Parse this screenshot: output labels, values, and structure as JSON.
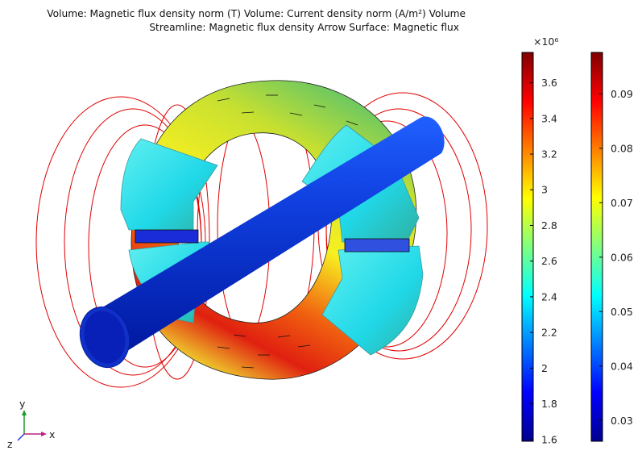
{
  "title": {
    "line1": "Volume: Magnetic flux density norm (T)  Volume: Current density norm (A/m²)  Volume",
    "line2": "Streamline: Magnetic flux density  Arrow Surface: Magnetic flux"
  },
  "axes_triad": {
    "x": "x",
    "y": "y",
    "z": "z"
  },
  "chart_data": [
    {
      "type": "heatmap",
      "title": "",
      "colormap": "jet",
      "multiplier": "×10⁶",
      "range": [
        1.59,
        3.77
      ],
      "ticks": [
        "1.6",
        "1.8",
        "2",
        "2.2",
        "2.4",
        "2.6",
        "2.8",
        "3",
        "3.2",
        "3.4",
        "3.6"
      ],
      "tick_values": [
        1.6,
        1.8,
        2.0,
        2.2,
        2.4,
        2.6,
        2.8,
        3.0,
        3.2,
        3.4,
        3.6
      ]
    },
    {
      "type": "heatmap",
      "title": "",
      "colormap": "jet",
      "range": [
        0.0262,
        0.0976
      ],
      "ticks": [
        "0.03",
        "0.04",
        "0.05",
        "0.06",
        "0.07",
        "0.08",
        "0.09"
      ],
      "tick_values": [
        0.03,
        0.04,
        0.05,
        0.06,
        0.07,
        0.08,
        0.09
      ]
    }
  ],
  "colors": {
    "streamline": "#e00000",
    "jet_low": "#00008f",
    "jet_high": "#800000"
  }
}
